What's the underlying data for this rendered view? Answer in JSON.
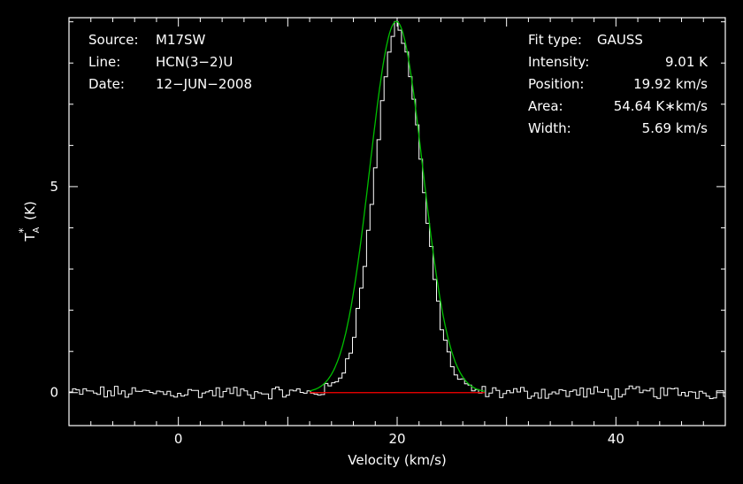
{
  "chart_data": {
    "type": "line",
    "xlabel": "Velocity (km/s)",
    "ylabel": "T*A (K)",
    "xlim": [
      -10,
      50
    ],
    "ylim": [
      -0.8,
      9.1
    ],
    "xticks": [
      0,
      20,
      40
    ],
    "yticks": [
      0,
      5
    ],
    "info_left": [
      {
        "label": "Source:",
        "value": "M17SW"
      },
      {
        "label": "Line:",
        "value": "HCN(3−2)U"
      },
      {
        "label": "Date:",
        "value": "12−JUN−2008"
      }
    ],
    "fit_info": [
      {
        "label": "Fit type:",
        "value": "GAUSS"
      },
      {
        "label": "Intensity:",
        "value": "9.01 K"
      },
      {
        "label": "Position:",
        "value": "19.92 km/s"
      },
      {
        "label": "Area:",
        "value": "54.64 K∗km/s"
      },
      {
        "label": "Width:",
        "value": "5.69 km/s"
      }
    ],
    "fit": {
      "amplitude": 9.01,
      "center": 19.92,
      "fwhm": 5.69,
      "baseline_range": [
        12,
        28
      ]
    },
    "series": [
      {
        "name": "spectrum",
        "color": "#ffffff"
      },
      {
        "name": "gaussian-fit",
        "color": "#00c000"
      },
      {
        "name": "baseline",
        "color": "#ff0000"
      }
    ]
  }
}
